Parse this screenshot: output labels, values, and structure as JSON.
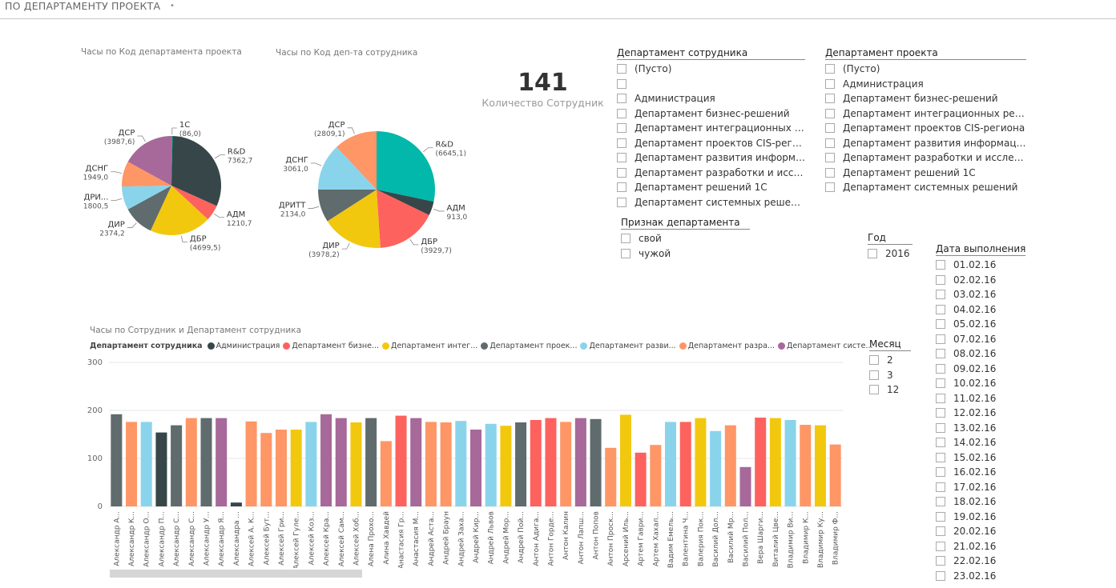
{
  "page": {
    "title": "ПО ДЕПАРТАМЕНТУ ПРОЕКТА",
    "tab_marker": "•"
  },
  "pie1": {
    "title": "Часы по Код департамента проекта",
    "slices": [
      {
        "label": "1С",
        "value": 86.0,
        "value_text": "(86,0)",
        "color": "#01B8AA"
      },
      {
        "label": "R&D",
        "value": 7362.7,
        "value_text": "7362,7",
        "color": "#374649"
      },
      {
        "label": "АДМ",
        "value": 1210.7,
        "value_text": "1210,7",
        "color": "#FD625E"
      },
      {
        "label": "ДБР",
        "value": 4699.5,
        "value_text": "(4699,5)",
        "color": "#F2C80F"
      },
      {
        "label": "ДИР",
        "value": 2374.2,
        "value_text": "2374,2",
        "color": "#5F6B6D"
      },
      {
        "label": "ДРИ...",
        "value": 1800.5,
        "value_text": "1800,5",
        "color": "#8AD4EB"
      },
      {
        "label": "ДСНГ",
        "value": 1949.0,
        "value_text": "1949,0",
        "color": "#FE9666"
      },
      {
        "label": "ДСР",
        "value": 3987.6,
        "value_text": "(3987,6)",
        "color": "#A66999"
      }
    ]
  },
  "pie2": {
    "title": "Часы по Код деп-та сотрудника",
    "slices": [
      {
        "label": "R&D",
        "value": 6645.1,
        "value_text": "(6645,1)",
        "color": "#01B8AA"
      },
      {
        "label": "АДМ",
        "value": 913.0,
        "value_text": "913,0",
        "color": "#374649"
      },
      {
        "label": "ДБР",
        "value": 3929.7,
        "value_text": "(3929,7)",
        "color": "#FD625E"
      },
      {
        "label": "ДИР",
        "value": 3978.2,
        "value_text": "(3978,2)",
        "color": "#F2C80F"
      },
      {
        "label": "ДРИТТ",
        "value": 2134.0,
        "value_text": "2134,0",
        "color": "#5F6B6D"
      },
      {
        "label": "ДСНГ",
        "value": 3061.0,
        "value_text": "3061,0",
        "color": "#8AD4EB"
      },
      {
        "label": "ДСР",
        "value": 2809.1,
        "value_text": "(2809,1)",
        "color": "#FE9666"
      }
    ]
  },
  "card": {
    "value": "141",
    "label": "Количество Сотрудник"
  },
  "slicer_emp_dept": {
    "title": "Департамент сотрудника",
    "items": [
      "(Пусто)",
      "",
      "Администрация",
      "Департамент бизнес-решений",
      "Департамент интеграционных реш...",
      "Департамент проектов CIS-региона",
      "Департамент развития информаци...",
      "Департамент разработки и исслед...",
      "Департамент решений 1С",
      "Департамент системных решений"
    ]
  },
  "slicer_proj_dept": {
    "title": "Департамент проекта",
    "items": [
      "(Пусто)",
      "Администрация",
      "Департамент бизнес-решений",
      "Департамент интеграционных решений",
      "Департамент проектов CIS-региона",
      "Департамент развития информацион...",
      "Департамент разработки и исследова...",
      "Департамент решений 1С",
      "Департамент системных решений"
    ]
  },
  "slicer_sign": {
    "title": "Признак департамента",
    "items": [
      "свой",
      "чужой"
    ]
  },
  "slicer_year": {
    "title": "Год",
    "items": [
      "2016"
    ]
  },
  "slicer_month": {
    "title": "Месяц",
    "items": [
      "2",
      "3",
      "12"
    ]
  },
  "slicer_date": {
    "title": "Дата выполнения",
    "items": [
      "01.02.16",
      "02.02.16",
      "03.02.16",
      "04.02.16",
      "05.02.16",
      "07.02.16",
      "08.02.16",
      "09.02.16",
      "10.02.16",
      "11.02.16",
      "12.02.16",
      "13.02.16",
      "14.02.16",
      "15.02.16",
      "16.02.16",
      "17.02.16",
      "18.02.16",
      "19.02.16",
      "20.02.16",
      "21.02.16",
      "22.02.16",
      "23.02.16"
    ]
  },
  "bar_legend": {
    "title": "Департамент сотрудника",
    "items": [
      {
        "label": "Администрация",
        "color": "#374649"
      },
      {
        "label": "Департамент бизне...",
        "color": "#FD625E"
      },
      {
        "label": "Департамент интег...",
        "color": "#F2C80F"
      },
      {
        "label": "Департамент проек...",
        "color": "#5F6B6D"
      },
      {
        "label": "Департамент разви...",
        "color": "#8AD4EB"
      },
      {
        "label": "Департамент разра...",
        "color": "#FE9666"
      },
      {
        "label": "Департамент систе...",
        "color": "#A66999"
      }
    ]
  },
  "chart_data": {
    "type": "bar",
    "title": "Часы по Сотрудник и Департамент сотрудника",
    "ylim": [
      0,
      300
    ],
    "yticks": [
      "0",
      "100",
      "200",
      "300"
    ],
    "categories": [
      "Александр А...",
      "Александр К...",
      "Александр О...",
      "Александр П...",
      "Александр С...",
      "Александр С...",
      "Александр У...",
      "Александр Я...",
      "Александра ...",
      "Алексей А. К...",
      "Алексей Бут...",
      "Алексей Гри...",
      "Алексей Гуле...",
      "Алексей Коз...",
      "Алексей Кра...",
      "Алексей Сам...",
      "Алексей Хоб...",
      "Алена Прохо...",
      "Алина Хавдей",
      "Анастасия Гр...",
      "Анастасия М...",
      "Андрей Аста...",
      "Андрей Браун",
      "Андрей Заха...",
      "Андрей Кир...",
      "Андрей Львов",
      "Андрей Мор...",
      "Андрей Пой...",
      "Антон Адига...",
      "Антон Горде...",
      "Антон Калин",
      "Антон Лапш...",
      "Антон Попов",
      "Антон Проск...",
      "Арсений Иль...",
      "Артем Гаври...",
      "Артем Хахал...",
      "Вадим Емель...",
      "Валентина Ч...",
      "Валерия Пок...",
      "Василий Дол...",
      "Василий Мр...",
      "Василий Пол...",
      "Вера Шарги...",
      "Виталий Цве...",
      "Владимир Ви...",
      "Владимир К...",
      "Владимир Ку...",
      "Владимир Ф..."
    ],
    "values": [
      192,
      176,
      176,
      154,
      169,
      184,
      184,
      184,
      8,
      177,
      153,
      160,
      160,
      176,
      192,
      184,
      175,
      184,
      136,
      189,
      184,
      176,
      175,
      178,
      160,
      172,
      168,
      175,
      180,
      184,
      176,
      184,
      182,
      122,
      191,
      112,
      128,
      176,
      176,
      184,
      157,
      169,
      82,
      185,
      184,
      180,
      170,
      169,
      129
    ],
    "colors": [
      "#5F6B6D",
      "#FE9666",
      "#8AD4EB",
      "#374649",
      "#5F6B6D",
      "#FE9666",
      "#5F6B6D",
      "#A66999",
      "#374649",
      "#FE9666",
      "#FE9666",
      "#FE9666",
      "#F2C80F",
      "#8AD4EB",
      "#A66999",
      "#A66999",
      "#F2C80F",
      "#5F6B6D",
      "#FE9666",
      "#FD625E",
      "#A66999",
      "#FE9666",
      "#FE9666",
      "#8AD4EB",
      "#A66999",
      "#8AD4EB",
      "#F2C80F",
      "#5F6B6D",
      "#FD625E",
      "#FD625E",
      "#FE9666",
      "#A66999",
      "#5F6B6D",
      "#FE9666",
      "#F2C80F",
      "#FD625E",
      "#FE9666",
      "#8AD4EB",
      "#FD625E",
      "#F2C80F",
      "#8AD4EB",
      "#FE9666",
      "#A66999",
      "#FD625E",
      "#F2C80F",
      "#8AD4EB",
      "#FE9666",
      "#F2C80F",
      "#FE9666"
    ],
    "grid": true
  }
}
